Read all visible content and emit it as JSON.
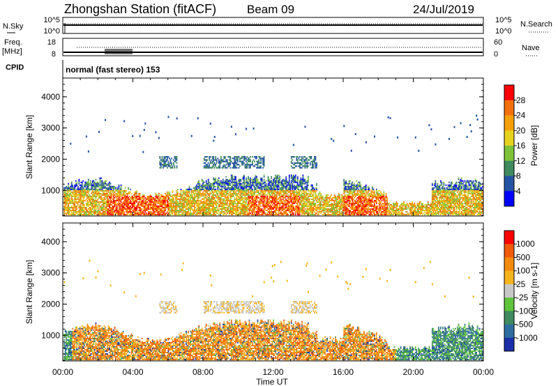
{
  "header": {
    "station": "Zhongshan Station (fitACF)",
    "beam": "Beam 09",
    "date": "24/Jul/2019"
  },
  "strip_labels": {
    "nsky": "N.Sky",
    "nsky_top": "10^5",
    "nsky_bottom": "10^0",
    "freq_line1": "Freq.",
    "freq_line2": "[MHz]",
    "freq_top": "18",
    "freq_bottom": "8",
    "cpid": "CPID",
    "cpid_value": "normal (fast stereo) 153",
    "nsearch": "N.Search",
    "nsearch_top": "10^5",
    "nsearch_bottom": "10^0",
    "nave": "Nave",
    "nave_top": "60",
    "nave_bottom": "0"
  },
  "chart_data": [
    {
      "type": "heatmap",
      "title": "",
      "ylabel": "Slant Range [km]",
      "xlabel": "Time UT",
      "x_ticks": [
        "00:00",
        "04:00",
        "08:00",
        "12:00",
        "16:00",
        "20:00",
        "00:00"
      ],
      "xlim_hours": [
        0,
        24
      ],
      "y_ticks": [
        1000,
        2000,
        3000,
        4000
      ],
      "ylim": [
        180,
        4600
      ],
      "colorbar": {
        "label": "Power [dB]",
        "ticks": [
          "4",
          "8",
          "12",
          "16",
          "20",
          "24",
          "28"
        ],
        "colors": [
          "#0000ff",
          "#2353a3",
          "#3f8a5e",
          "#7ec23a",
          "#e6d21e",
          "#f5a00a",
          "#f2700b",
          "#ff0000"
        ]
      }
    },
    {
      "type": "heatmap",
      "title": "",
      "ylabel": "Slant Range [km]",
      "xlabel": "Time UT",
      "x_ticks": [
        "00:00",
        "04:00",
        "08:00",
        "12:00",
        "16:00",
        "20:00",
        "00:00"
      ],
      "xlim_hours": [
        0,
        24
      ],
      "y_ticks": [
        1000,
        2000,
        3000,
        4000
      ],
      "ylim": [
        180,
        4600
      ],
      "colorbar": {
        "label": "Velocity [m s-1]",
        "ticks": [
          "1000",
          "500",
          "100",
          "25",
          "-25",
          "-100",
          "-500",
          "-1000"
        ],
        "colors": [
          "#1a2fa8",
          "#2f6ea0",
          "#3f8a5e",
          "#5ec43a",
          "#c8c8c8",
          "#f5b41e",
          "#f28a0e",
          "#f05a0b",
          "#ff0000"
        ]
      }
    }
  ]
}
